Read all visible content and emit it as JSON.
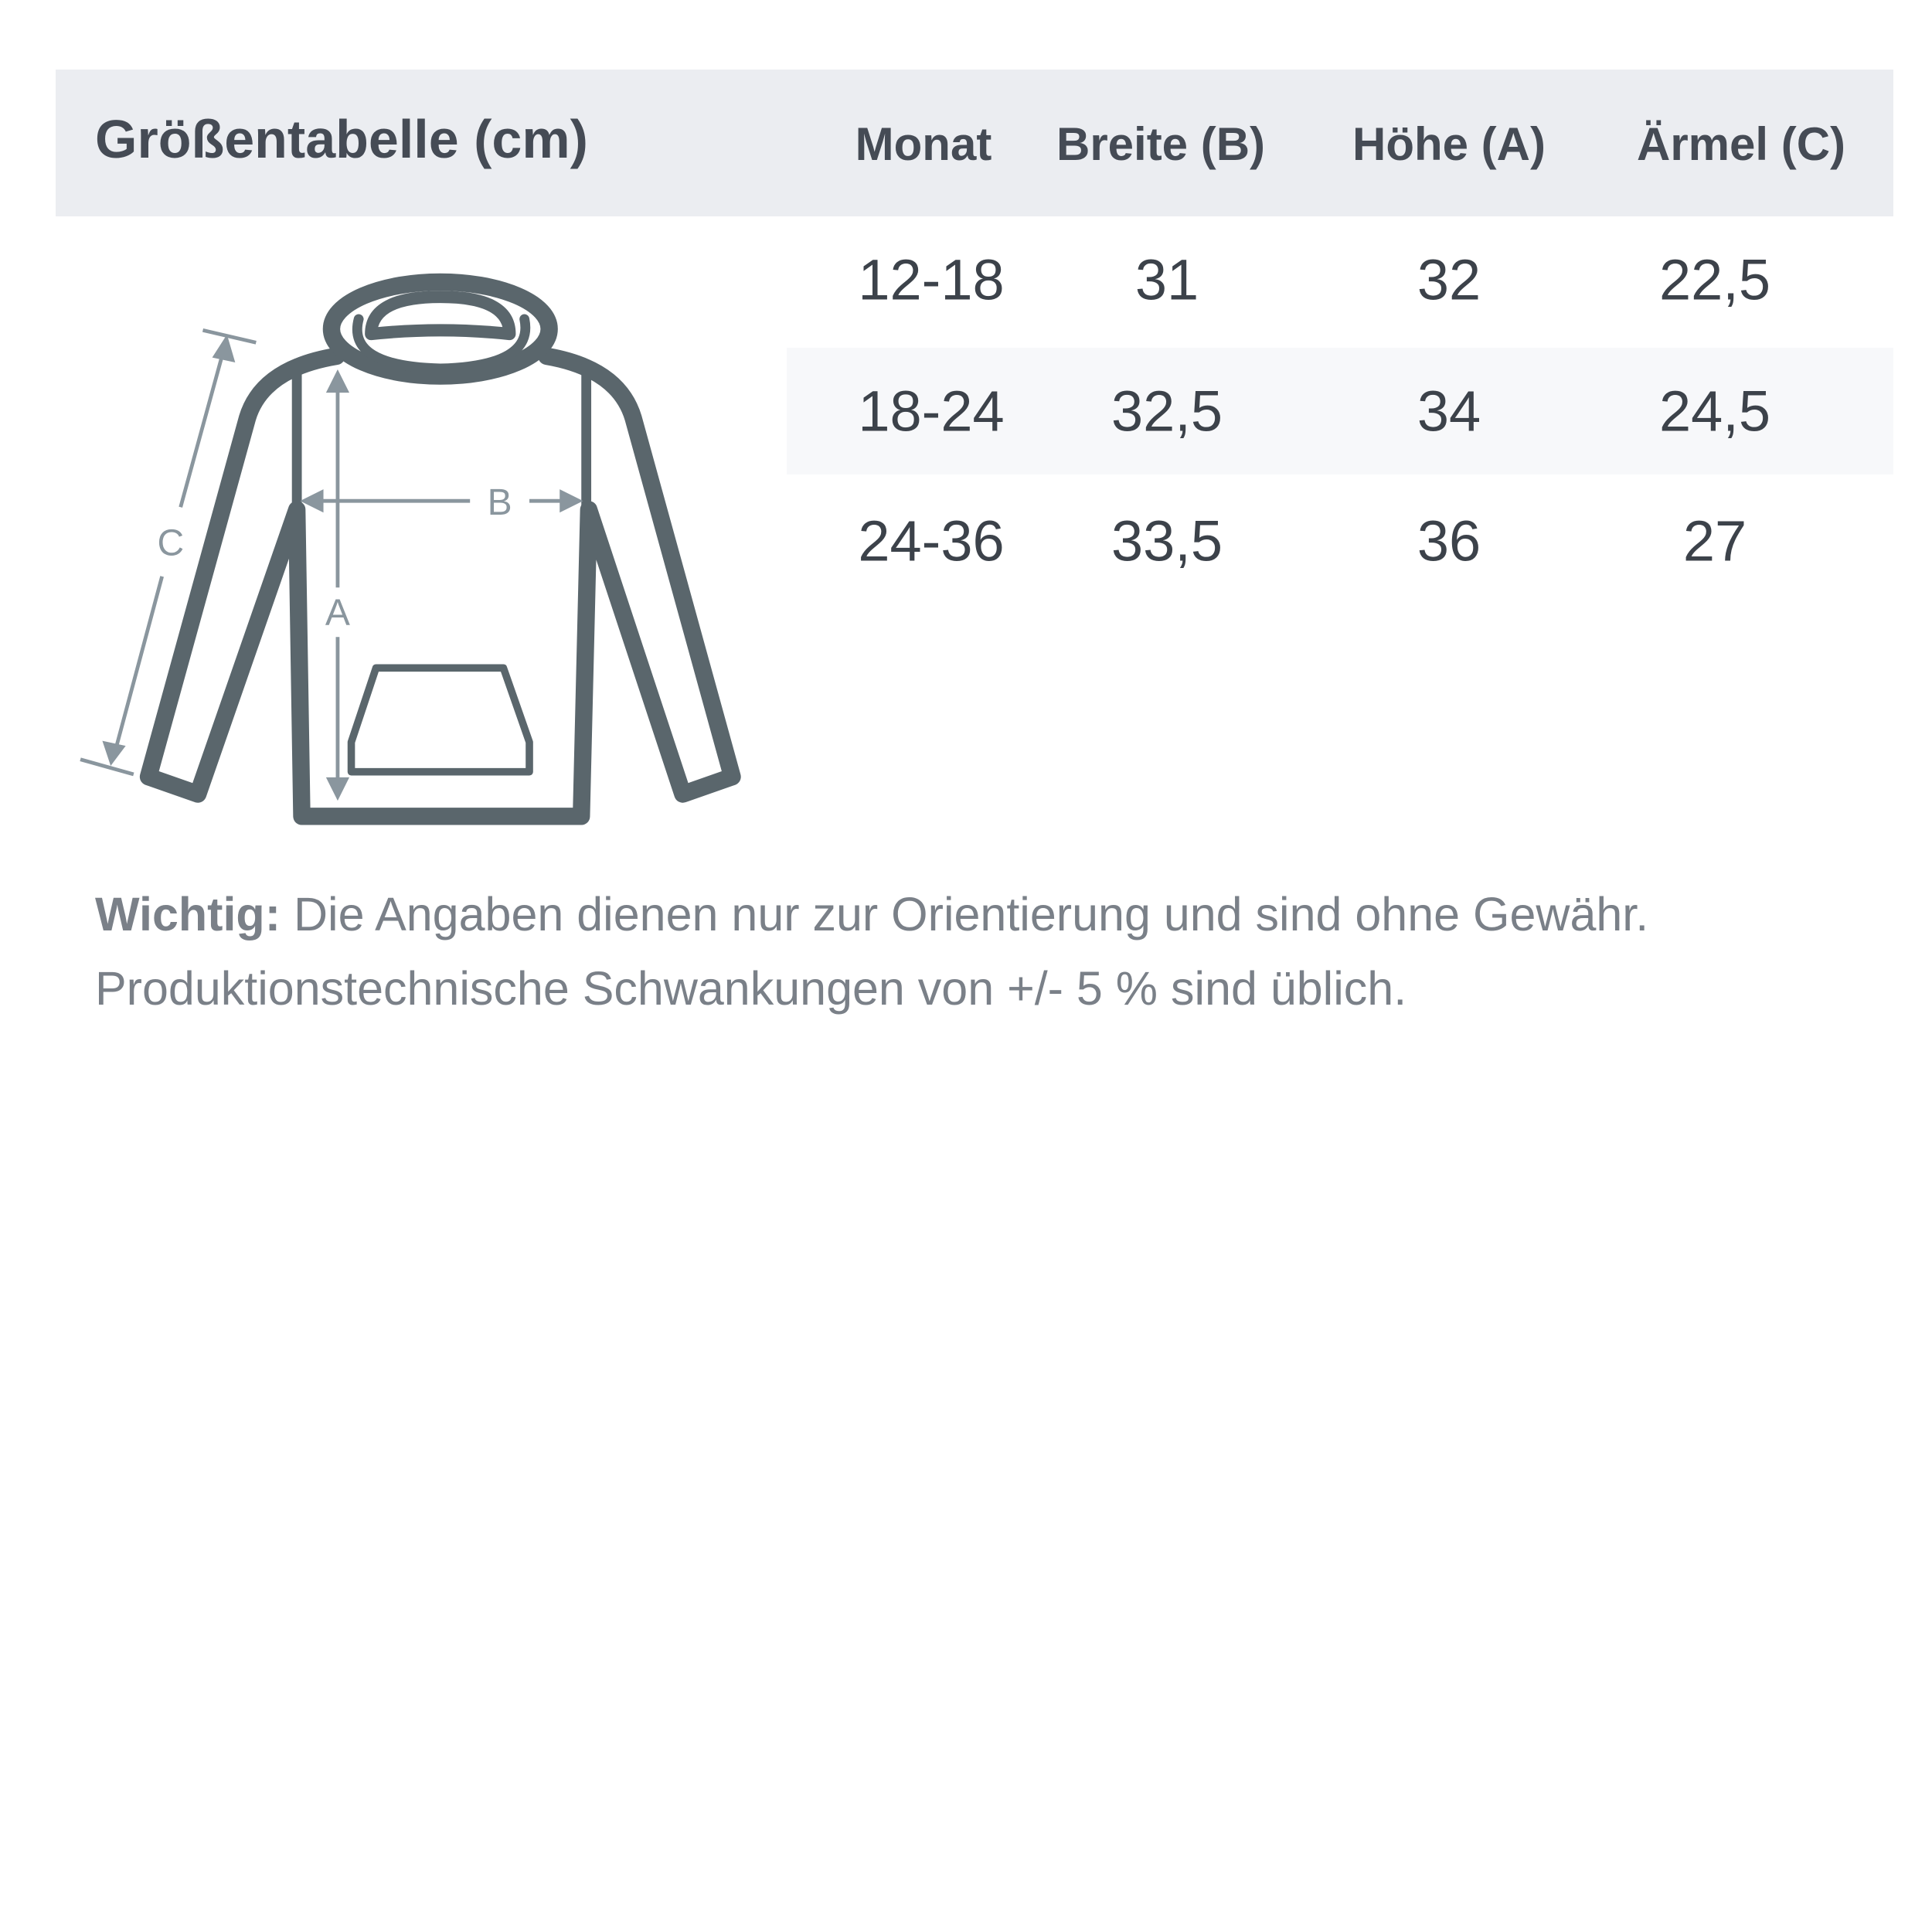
{
  "title": "Größentabelle (cm)",
  "columns": [
    "Monat",
    "Breite (B)",
    "Höhe (A)",
    "Ärmel (C)"
  ],
  "rows": [
    [
      "12-18",
      "31",
      "32",
      "22,5"
    ],
    [
      "18-24",
      "32,5",
      "34",
      "24,5"
    ],
    [
      "24-36",
      "33,5",
      "36",
      "27"
    ]
  ],
  "diagram": {
    "icon": "hoodie-measurement-diagram",
    "labels": {
      "a": "A",
      "b": "B",
      "c": "C"
    }
  },
  "note": {
    "bold": "Wichtig:",
    "line1": " Die Angaben dienen nur zur Orientierung und sind ohne Gewähr.",
    "line2": "Produktionstechnische Schwankungen von +/- 5 % sind üblich."
  },
  "colors": {
    "header_bg": "#ebedf1",
    "outline": "#5a666c",
    "measure": "#8a969e",
    "text": "#454b55"
  }
}
